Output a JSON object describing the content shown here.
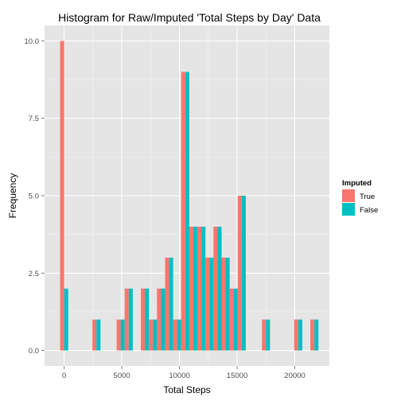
{
  "chart_data": {
    "type": "bar",
    "title": "Histogram for Raw/Imputed 'Total Steps by Day' Data",
    "xlabel": "Total Steps",
    "ylabel": "Frequency",
    "xlim": [
      -1700,
      23000
    ],
    "ylim": [
      -0.5,
      10.5
    ],
    "x_ticks": [
      0,
      5000,
      10000,
      15000,
      20000
    ],
    "y_ticks": [
      0.0,
      2.5,
      5.0,
      7.5,
      10.0
    ],
    "x_tick_labels": [
      "0",
      "5000",
      "10000",
      "15000",
      "20000"
    ],
    "y_tick_labels": [
      "0.0",
      "2.5",
      "5.0",
      "7.5",
      "10.0"
    ],
    "bin_width": 700,
    "bin_centers": [
      0,
      2800,
      4900,
      5600,
      7000,
      7700,
      8400,
      9100,
      9800,
      10500,
      11200,
      11900,
      12600,
      13300,
      14000,
      14700,
      15400,
      17500,
      20300,
      21700
    ],
    "legend": {
      "title": "Imputed",
      "placement": "right"
    },
    "series": [
      {
        "name": "True",
        "color": "#F8766D",
        "values": [
          10,
          1,
          1,
          2,
          2,
          1,
          2,
          3,
          1,
          9,
          4,
          4,
          3,
          4,
          3,
          2,
          5,
          1,
          1,
          1
        ]
      },
      {
        "name": "False",
        "color": "#00BFC4",
        "values": [
          2,
          1,
          1,
          2,
          2,
          1,
          2,
          3,
          1,
          9,
          4,
          4,
          3,
          4,
          3,
          2,
          5,
          1,
          1,
          1
        ]
      }
    ],
    "grid": true,
    "panel_background": "#E5E5E5",
    "grid_color": "#FFFFFF"
  }
}
